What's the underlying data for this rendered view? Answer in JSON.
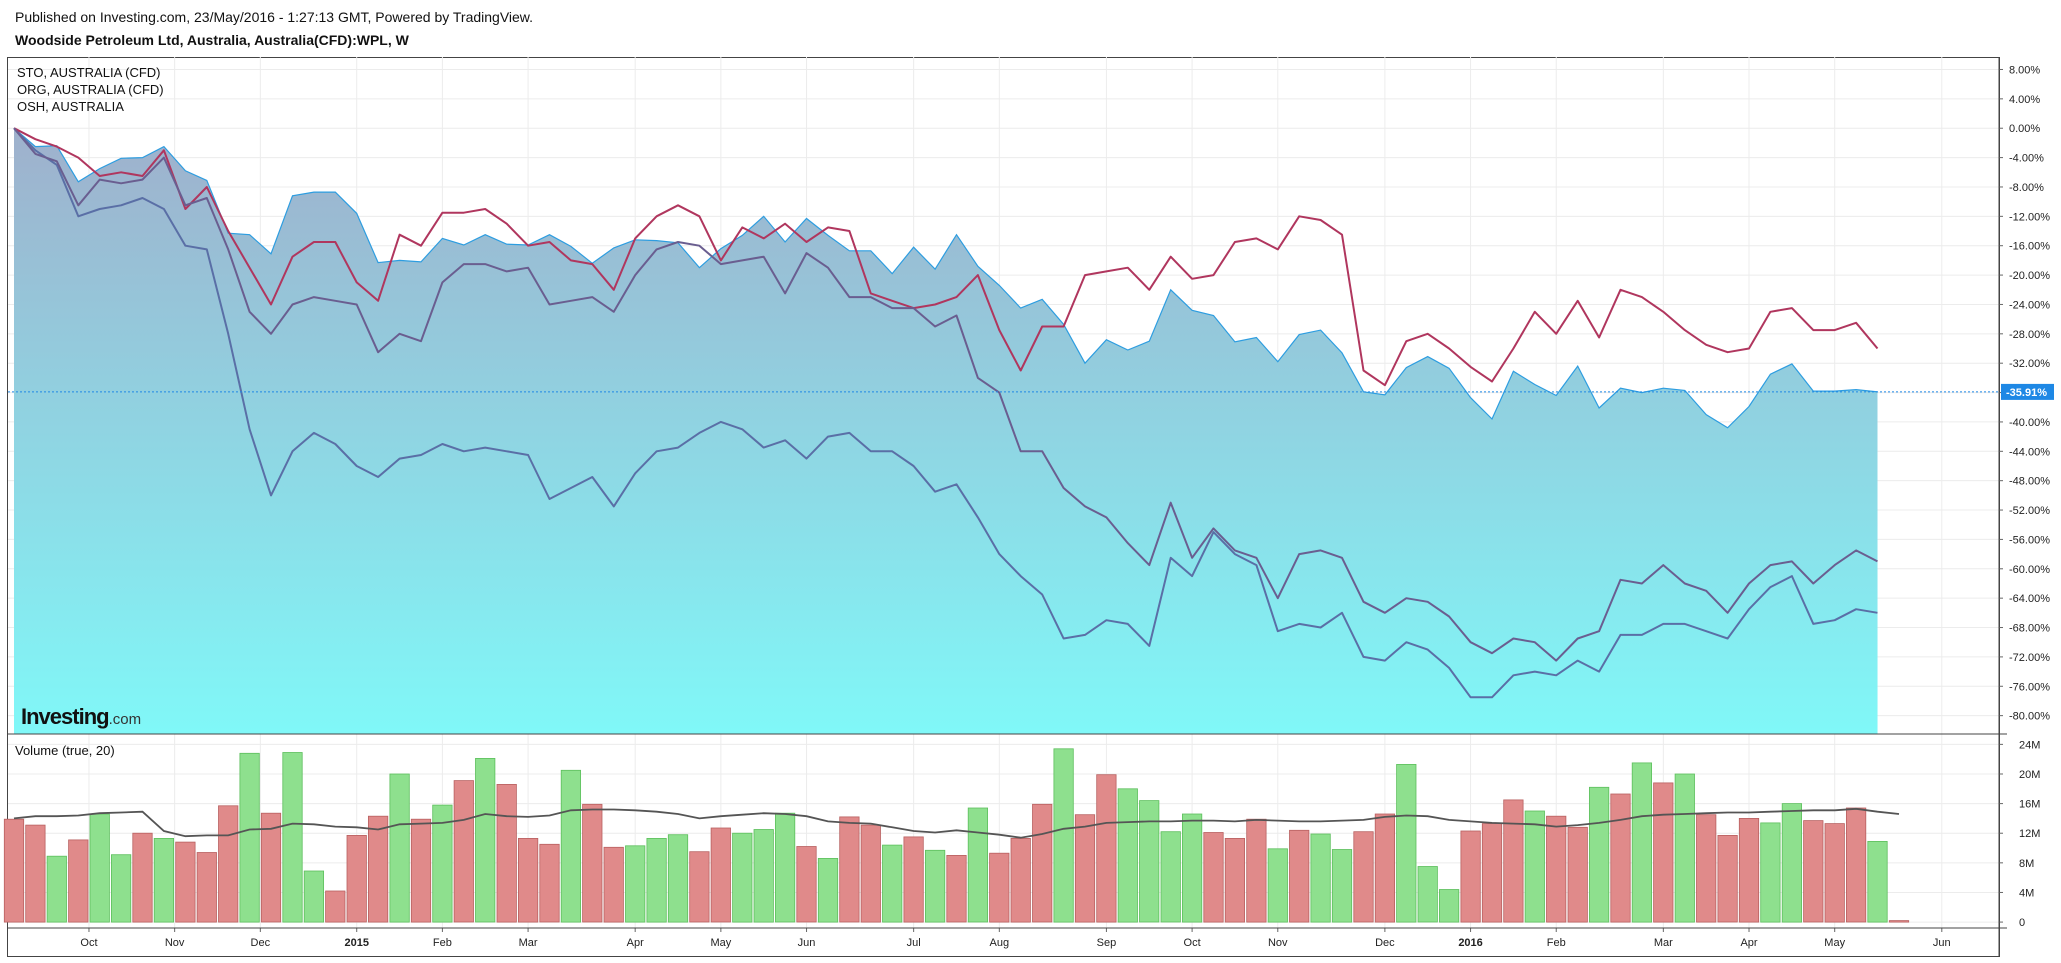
{
  "header": {
    "published": "Published on Investing.com, 23/May/2016 - 1:27:13 GMT, Powered by TradingView.",
    "title": "Woodside Petroleum Ltd, Australia, Australia(CFD):WPL, W"
  },
  "legend": [
    "STO, AUSTRALIA (CFD)",
    "ORG, AUSTRALIA (CFD)",
    "OSH, AUSTRALIA"
  ],
  "logo": {
    "brand": "Investing",
    "suffix": ".com"
  },
  "volume_label": "Volume (true, 20)",
  "colors": {
    "area_top": "#9fb0cc",
    "area_bottom": "#80f8f8",
    "area_line": "#2d9de0",
    "sto": "#5a6fa6",
    "org": "#b0365e",
    "osh": "#6a5e90",
    "vol_up": "#8ee08e",
    "vol_down": "#e08a8a",
    "vol_ma": "#555555",
    "badge": "#1e88e5"
  },
  "chart_data": [
    {
      "type": "line",
      "title": "Woodside Petroleum Ltd, Australia, Australia(CFD):WPL, W",
      "x_labels": [
        "Oct",
        "Nov",
        "Dec",
        "2015",
        "Feb",
        "Mar",
        "Apr",
        "May",
        "Jun",
        "Jul",
        "Aug",
        "Sep",
        "Oct",
        "Nov",
        "Dec",
        "2016",
        "Feb",
        "Mar",
        "Apr",
        "May",
        "Jun"
      ],
      "x_label_week_index": [
        3.5,
        7.5,
        11.5,
        16,
        20,
        24,
        29,
        33,
        37,
        42,
        46,
        51,
        55,
        59,
        64,
        68,
        72,
        77,
        81,
        85,
        90
      ],
      "y_ticks": [
        "8.00%",
        "4.00%",
        "0.00%",
        "-4.00%",
        "-8.00%",
        "-12.00%",
        "-16.00%",
        "-20.00%",
        "-24.00%",
        "-28.00%",
        "-32.00%",
        "-36.00%",
        "-40.00%",
        "-44.00%",
        "-48.00%",
        "-52.00%",
        "-56.00%",
        "-60.00%",
        "-64.00%",
        "-68.00%",
        "-72.00%",
        "-76.00%",
        "-80.00%"
      ],
      "ylim": [
        -82.5,
        9.7
      ],
      "last_value_badge": "-35.91%",
      "series": [
        {
          "name": "Woodside Petroleum Ltd, Australia, Australia(CFD):WPL, W",
          "style": "area",
          "values": [
            0.0,
            -2.5,
            -2.4,
            -7.3,
            -5.5,
            -4.1,
            -4.0,
            -2.5,
            -5.8,
            -7.1,
            -14.3,
            -14.5,
            -17.1,
            -9.2,
            -8.7,
            -8.7,
            -11.6,
            -18.3,
            -18.0,
            -18.2,
            -15.0,
            -15.9,
            -14.5,
            -15.8,
            -15.9,
            -14.5,
            -16.1,
            -18.4,
            -16.3,
            -15.2,
            -15.3,
            -15.6,
            -19.0,
            -16.4,
            -14.6,
            -12.0,
            -15.5,
            -12.3,
            -14.6,
            -16.7,
            -16.7,
            -19.8,
            -16.2,
            -19.2,
            -14.5,
            -18.8,
            -21.4,
            -24.5,
            -23.3,
            -26.7,
            -32.0,
            -28.8,
            -30.2,
            -29.0,
            -22.0,
            -24.8,
            -25.5,
            -29.1,
            -28.5,
            -31.8,
            -28.1,
            -27.5,
            -30.6,
            -35.9,
            -36.3,
            -32.6,
            -31.1,
            -32.7,
            -36.7,
            -39.6,
            -33.1,
            -34.9,
            -36.4,
            -32.4,
            -38.1,
            -35.4,
            -36.0,
            -35.4,
            -35.7,
            -39.0,
            -40.8,
            -37.9,
            -33.5,
            -32.1,
            -35.8,
            -35.8,
            -35.6,
            -35.91
          ]
        },
        {
          "name": "STO, AUSTRALIA (CFD)",
          "style": "line",
          "values": [
            0.0,
            -3.0,
            -5.0,
            -12.0,
            -11.0,
            -10.5,
            -9.5,
            -11.0,
            -16.0,
            -16.5,
            -28.0,
            -41.0,
            -50.0,
            -44.0,
            -41.5,
            -43.0,
            -46.0,
            -47.5,
            -45.0,
            -44.5,
            -43.0,
            -44.0,
            -43.5,
            -44.0,
            -44.5,
            -50.5,
            -49.0,
            -47.5,
            -51.5,
            -47.0,
            -44.0,
            -43.5,
            -41.5,
            -40.0,
            -41.0,
            -43.5,
            -42.5,
            -45.0,
            -42.0,
            -41.5,
            -44.0,
            -44.0,
            -46.0,
            -49.5,
            -48.5,
            -53.0,
            -58.0,
            -61.0,
            -63.5,
            -69.5,
            -69.0,
            -67.0,
            -67.5,
            -70.5,
            -58.5,
            -61.0,
            -55.0,
            -58.0,
            -59.5,
            -68.5,
            -67.5,
            -68.0,
            -66.0,
            -72.0,
            -72.5,
            -70.0,
            -71.0,
            -73.5,
            -77.5,
            -77.5,
            -74.5,
            -74.0,
            -74.5,
            -72.5,
            -74.0,
            -69.0,
            -69.0,
            -67.5,
            -67.5,
            -68.5,
            -69.5,
            -65.5,
            -62.5,
            -61.0,
            -67.5,
            -67.0,
            -65.5,
            -66.0
          ]
        },
        {
          "name": "ORG, AUSTRALIA (CFD)",
          "style": "line",
          "values": [
            0.0,
            -1.5,
            -2.5,
            -4.0,
            -6.5,
            -6.0,
            -6.5,
            -3.0,
            -11.0,
            -8.0,
            -14.0,
            -19.0,
            -24.0,
            -17.5,
            -15.5,
            -15.5,
            -21.0,
            -23.5,
            -14.5,
            -16.0,
            -11.5,
            -11.5,
            -11.0,
            -13.0,
            -16.0,
            -15.5,
            -18.0,
            -18.5,
            -22.0,
            -15.0,
            -12.0,
            -10.5,
            -12.0,
            -18.0,
            -13.5,
            -15.0,
            -13.0,
            -15.5,
            -13.5,
            -14.0,
            -22.5,
            -23.5,
            -24.5,
            -24.0,
            -23.0,
            -20.0,
            -27.5,
            -33.0,
            -27.0,
            -27.0,
            -20.0,
            -19.5,
            -19.0,
            -22.0,
            -17.5,
            -20.5,
            -20.0,
            -15.5,
            -15.0,
            -16.5,
            -12.0,
            -12.5,
            -14.5,
            -33.0,
            -35.0,
            -29.0,
            -28.0,
            -30.0,
            -32.5,
            -34.5,
            -30.0,
            -25.0,
            -28.0,
            -23.5,
            -28.5,
            -22.0,
            -23.0,
            -25.0,
            -27.5,
            -29.5,
            -30.5,
            -30.0,
            -25.0,
            -24.5,
            -27.5,
            -27.5,
            -26.5,
            -30.0
          ]
        },
        {
          "name": "OSH, AUSTRALIA",
          "style": "line",
          "values": [
            0.0,
            -3.5,
            -4.5,
            -10.5,
            -7.0,
            -7.5,
            -7.0,
            -4.0,
            -10.5,
            -9.5,
            -16.5,
            -25.0,
            -28.0,
            -24.0,
            -23.0,
            -23.5,
            -24.0,
            -30.5,
            -28.0,
            -29.0,
            -21.0,
            -18.5,
            -18.5,
            -19.5,
            -19.0,
            -24.0,
            -23.5,
            -23.0,
            -25.0,
            -20.0,
            -16.5,
            -15.5,
            -16.0,
            -18.5,
            -18.0,
            -17.5,
            -22.5,
            -17.0,
            -19.0,
            -23.0,
            -23.0,
            -24.5,
            -24.5,
            -27.0,
            -25.5,
            -34.0,
            -36.0,
            -44.0,
            -44.0,
            -49.0,
            -51.5,
            -53.0,
            -56.5,
            -59.5,
            -51.0,
            -58.5,
            -54.5,
            -57.5,
            -58.5,
            -64.0,
            -58.0,
            -57.5,
            -58.5,
            -64.5,
            -66.0,
            -64.0,
            -64.5,
            -66.5,
            -70.0,
            -71.5,
            -69.5,
            -70.0,
            -72.5,
            -69.5,
            -68.5,
            -61.5,
            -62.0,
            -59.5,
            -62.0,
            -63.0,
            -66.0,
            -62.0,
            -59.5,
            -59.0,
            -62.0,
            -59.5,
            -57.5,
            -59.0
          ]
        }
      ]
    },
    {
      "type": "bar",
      "title": "Volume (true, 20)",
      "y_ticks": [
        "24M",
        "20M",
        "16M",
        "12M",
        "8M",
        "4M",
        "0"
      ],
      "ylim": [
        -0.8,
        25.4
      ],
      "volumes": [
        13.9,
        13.1,
        8.9,
        11.1,
        14.6,
        9.1,
        12.0,
        11.3,
        10.8,
        9.4,
        15.7,
        22.8,
        14.7,
        22.9,
        6.9,
        4.2,
        11.7,
        14.3,
        20.0,
        13.9,
        15.8,
        19.1,
        22.1,
        18.6,
        11.3,
        10.5,
        20.5,
        15.9,
        10.1,
        10.3,
        11.3,
        11.8,
        9.5,
        12.7,
        12.0,
        12.5,
        14.7,
        10.2,
        8.6,
        14.2,
        13.1,
        10.4,
        11.5,
        9.7,
        9.0,
        15.4,
        9.3,
        11.3,
        15.9,
        23.4,
        14.5,
        19.9,
        18.0,
        16.4,
        12.2,
        14.6,
        12.1,
        11.3,
        13.9,
        9.9,
        12.4,
        11.9,
        9.8,
        12.2,
        14.6,
        21.3,
        7.5,
        4.4,
        12.3,
        13.3,
        16.5,
        15.0,
        14.3,
        12.8,
        18.2,
        17.3,
        21.5,
        18.8,
        20.0,
        14.5,
        11.7,
        14.0,
        13.4,
        16.0,
        13.7,
        13.3,
        15.4,
        10.9,
        0.2
      ],
      "directions": [
        "down",
        "down",
        "up",
        "down",
        "up",
        "up",
        "down",
        "up",
        "down",
        "down",
        "down",
        "up",
        "down",
        "up",
        "up",
        "down",
        "down",
        "down",
        "up",
        "down",
        "up",
        "down",
        "up",
        "down",
        "down",
        "down",
        "up",
        "down",
        "down",
        "up",
        "up",
        "up",
        "down",
        "down",
        "up",
        "up",
        "up",
        "down",
        "up",
        "down",
        "down",
        "up",
        "down",
        "up",
        "down",
        "up",
        "down",
        "down",
        "down",
        "up",
        "down",
        "down",
        "up",
        "up",
        "up",
        "up",
        "down",
        "down",
        "down",
        "up",
        "down",
        "up",
        "up",
        "down",
        "down",
        "up",
        "up",
        "up",
        "down",
        "down",
        "down",
        "up",
        "down",
        "down",
        "up",
        "down",
        "up",
        "down",
        "up",
        "down",
        "down",
        "down",
        "up",
        "up",
        "down",
        "down",
        "down",
        "up",
        "down"
      ],
      "ma20": [
        14.0,
        14.3,
        14.3,
        14.4,
        14.7,
        14.8,
        14.9,
        12.3,
        11.6,
        11.7,
        11.7,
        12.5,
        12.6,
        13.3,
        13.2,
        12.9,
        12.8,
        12.5,
        13.2,
        13.3,
        13.4,
        13.8,
        14.6,
        14.3,
        14.2,
        14.4,
        15.1,
        15.2,
        15.2,
        15.1,
        14.9,
        14.6,
        14.0,
        14.3,
        14.5,
        14.7,
        14.6,
        14.3,
        13.6,
        13.4,
        13.3,
        12.8,
        12.3,
        12.1,
        12.4,
        12.1,
        11.8,
        11.4,
        11.9,
        12.6,
        12.9,
        13.4,
        13.5,
        13.6,
        13.6,
        13.7,
        13.7,
        13.6,
        13.8,
        13.7,
        13.6,
        13.6,
        13.7,
        13.8,
        14.2,
        14.4,
        14.3,
        13.8,
        13.6,
        13.4,
        13.3,
        13.2,
        12.9,
        13.1,
        13.4,
        13.8,
        14.3,
        14.5,
        14.6,
        14.7,
        14.8,
        14.8,
        14.9,
        15.0,
        15.1,
        15.1,
        15.3,
        14.9,
        14.6
      ]
    }
  ]
}
